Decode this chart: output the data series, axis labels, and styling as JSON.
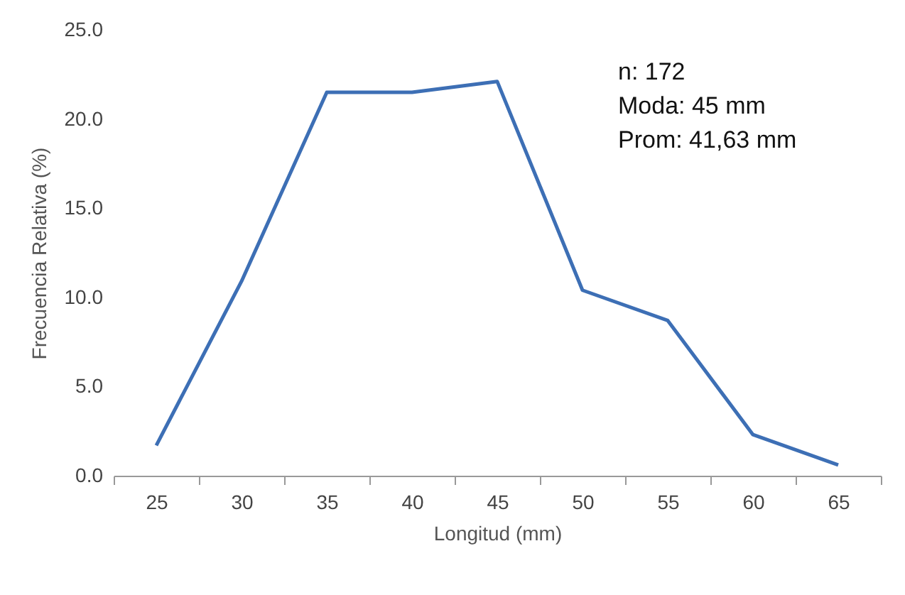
{
  "chart_data": {
    "type": "line",
    "xlabel": "Longitud (mm)",
    "ylabel": "Frecuencia Relativa (%)",
    "categories": [
      "25",
      "30",
      "35",
      "40",
      "45",
      "50",
      "55",
      "60",
      "65"
    ],
    "series": [
      {
        "color": "#3d6fb5",
        "values": [
          1.7,
          10.9,
          21.5,
          21.5,
          22.1,
          10.4,
          8.7,
          2.3,
          0.6
        ]
      }
    ],
    "ylim": [
      0,
      25
    ],
    "yticks": [
      {
        "value": 0,
        "label": "0.0"
      },
      {
        "value": 5,
        "label": "5.0"
      },
      {
        "value": 10,
        "label": "10.0"
      },
      {
        "value": 15,
        "label": "15.0"
      },
      {
        "value": 20,
        "label": "20.0"
      },
      {
        "value": 25,
        "label": "25.0"
      }
    ],
    "annotations": [
      "n: 172",
      "Moda: 45 mm",
      "Prom: 41,63 mm"
    ],
    "grid": false,
    "marker": "none",
    "line_style": "solid"
  }
}
